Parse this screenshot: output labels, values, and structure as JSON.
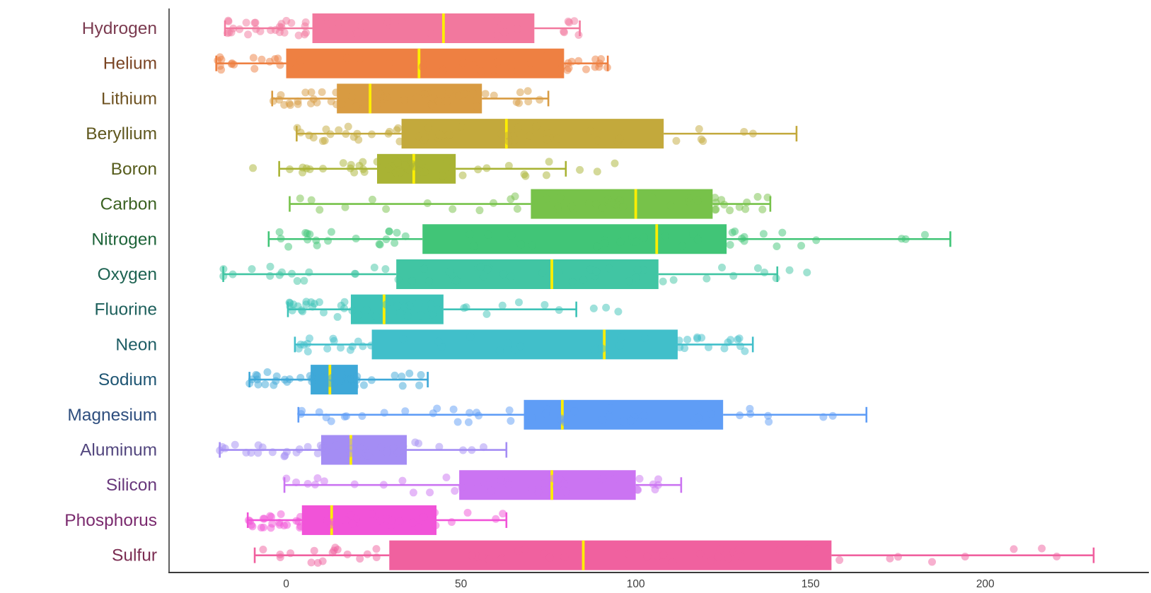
{
  "chart_data": {
    "type": "box",
    "orientation": "horizontal",
    "title": "",
    "xlabel": "",
    "ylabel": "",
    "grid": false,
    "legend": "none",
    "x_ticks": [
      0,
      50,
      100,
      150,
      200
    ],
    "x_tick_labels": [
      "0",
      "50",
      "100",
      "150",
      "200"
    ],
    "xlim": [
      -33.5,
      246.8
    ],
    "axis_color": "#3a3a3a",
    "tick_label_color": "#3d3d3d",
    "median_line_color": "#fdee02",
    "point_opacity": 0.5,
    "categories": [
      "Hydrogen",
      "Helium",
      "Lithium",
      "Beryllium",
      "Boron",
      "Carbon",
      "Nitrogen",
      "Oxygen",
      "Fluorine",
      "Neon",
      "Sodium",
      "Magnesium",
      "Aluminum",
      "Silicon",
      "Phosphorus",
      "Sulfur"
    ],
    "series": [
      {
        "name": "Hydrogen",
        "color": "#f2789e",
        "label_color": "#7b3b50",
        "whisker_low": -17.5,
        "q1": 7.5,
        "median": 45,
        "q3": 71,
        "whisker_high": 84,
        "outliers": [],
        "n_points": 48
      },
      {
        "name": "Helium",
        "color": "#ee8042",
        "label_color": "#7a4423",
        "whisker_low": -20,
        "q1": 0,
        "median": 38,
        "q3": 79.5,
        "whisker_high": 92,
        "outliers": [],
        "n_points": 50
      },
      {
        "name": "Lithium",
        "color": "#d89b42",
        "label_color": "#6e5221",
        "whisker_low": -4,
        "q1": 14.5,
        "median": 24,
        "q3": 56,
        "whisker_high": 75,
        "outliers": [],
        "n_points": 48
      },
      {
        "name": "Beryllium",
        "color": "#c3a93c",
        "label_color": "#60581f",
        "whisker_low": 3,
        "q1": 33,
        "median": 63,
        "q3": 108,
        "whisker_high": 146,
        "outliers": [],
        "n_points": 52
      },
      {
        "name": "Boron",
        "color": "#a9b334",
        "label_color": "#565c1c",
        "whisker_low": -2,
        "q1": 26,
        "median": 36.5,
        "q3": 48.5,
        "whisker_high": 80,
        "outliers": [
          -9.5,
          84,
          89,
          94
        ],
        "n_points": 44
      },
      {
        "name": "Carbon",
        "color": "#77c24a",
        "label_color": "#3c6323",
        "whisker_low": 1,
        "q1": 70,
        "median": 100,
        "q3": 122,
        "whisker_high": 138.5,
        "outliers": [],
        "n_points": 48
      },
      {
        "name": "Nitrogen",
        "color": "#41c577",
        "label_color": "#1e6439",
        "whisker_low": -5,
        "q1": 39,
        "median": 106,
        "q3": 126,
        "whisker_high": 190,
        "outliers": [],
        "n_points": 52
      },
      {
        "name": "Oxygen",
        "color": "#41c5a3",
        "label_color": "#1e6352",
        "whisker_low": -18,
        "q1": 31.5,
        "median": 76,
        "q3": 106.5,
        "whisker_high": 140.5,
        "outliers": [
          144,
          149
        ],
        "n_points": 52
      },
      {
        "name": "Fluorine",
        "color": "#3ec3b8",
        "label_color": "#1e605c",
        "whisker_low": 0.5,
        "q1": 18.5,
        "median": 28,
        "q3": 45,
        "whisker_high": 83,
        "outliers": [
          88,
          91.5,
          95
        ],
        "n_points": 44
      },
      {
        "name": "Neon",
        "color": "#41bfca",
        "label_color": "#1e5e65",
        "whisker_low": 2.5,
        "q1": 24.5,
        "median": 91,
        "q3": 112,
        "whisker_high": 133.5,
        "outliers": [],
        "n_points": 44
      },
      {
        "name": "Sodium",
        "color": "#3ea8d8",
        "label_color": "#1e5573",
        "whisker_low": -10.5,
        "q1": 7,
        "median": 12.5,
        "q3": 20.5,
        "whisker_high": 40.5,
        "outliers": [],
        "n_points": 40
      },
      {
        "name": "Magnesium",
        "color": "#5f9df6",
        "label_color": "#2e4e7e",
        "whisker_low": 3.5,
        "q1": 68,
        "median": 79,
        "q3": 125,
        "whisker_high": 166,
        "outliers": [],
        "n_points": 45
      },
      {
        "name": "Aluminum",
        "color": "#a48df4",
        "label_color": "#52467e",
        "whisker_low": -19,
        "q1": 10,
        "median": 18.5,
        "q3": 34.5,
        "whisker_high": 63,
        "outliers": [],
        "n_points": 46
      },
      {
        "name": "Silicon",
        "color": "#cb74f2",
        "label_color": "#68387c",
        "whisker_low": -0.5,
        "q1": 49.5,
        "median": 76,
        "q3": 100,
        "whisker_high": 113,
        "outliers": [],
        "n_points": 42
      },
      {
        "name": "Phosphorus",
        "color": "#f153d8",
        "label_color": "#7a2a6e",
        "whisker_low": -11,
        "q1": 4.5,
        "median": 13,
        "q3": 43,
        "whisker_high": 63,
        "outliers": [],
        "n_points": 46
      },
      {
        "name": "Sulfur",
        "color": "#f0619f",
        "label_color": "#7b2d52",
        "whisker_low": -9,
        "q1": 29.5,
        "median": 85,
        "q3": 156,
        "whisker_high": 231,
        "outliers": [],
        "n_points": 52
      }
    ]
  }
}
